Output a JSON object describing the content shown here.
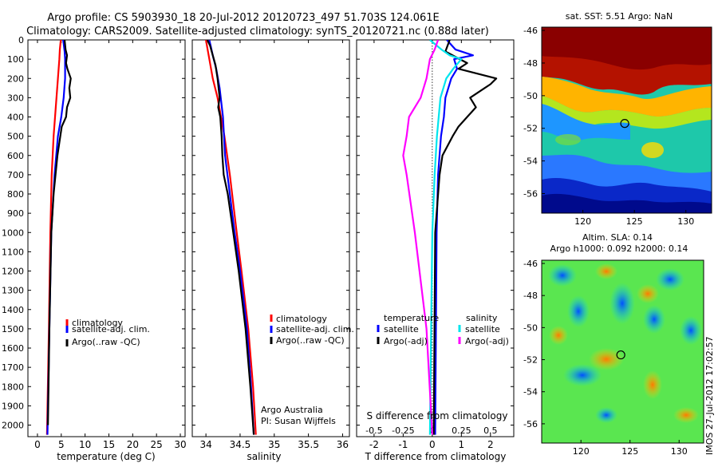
{
  "header": {
    "line1": "Argo profile: CS 5903930_18 20-Jul-2012 20120723_497 51.703S 124.061E",
    "line2": "Climatology: CARS2009. Satellite-adjusted climatology: synTS_20120721.nc (0.88d later)"
  },
  "colors": {
    "climatology": "#ff0000",
    "satellite": "#0000ff",
    "argo": "#000000",
    "sal_sat": "#00e5ee",
    "sal_argo": "#ff00ff"
  },
  "chart_data": [
    {
      "type": "line",
      "xlabel": "temperature (deg C)",
      "xlim": [
        -2,
        31
      ],
      "ylim": [
        2060,
        0
      ],
      "y_reversed": true,
      "xticks": [
        0,
        5,
        10,
        15,
        20,
        25,
        30
      ],
      "yticks": [
        0,
        100,
        200,
        300,
        400,
        500,
        600,
        700,
        800,
        900,
        1000,
        1100,
        1200,
        1300,
        1400,
        1500,
        1600,
        1700,
        1800,
        1900,
        2000
      ],
      "legend": [
        "climatology",
        "satellite-adj. clim.",
        "Argo(..raw -QC)"
      ],
      "legend_position": "center",
      "series": [
        {
          "name": "climatology",
          "color": "#ff0000",
          "depth": [
            0,
            50,
            100,
            200,
            300,
            400,
            500,
            700,
            1000,
            1500,
            2050
          ],
          "values": [
            4.9,
            4.7,
            4.6,
            4.3,
            4.0,
            3.7,
            3.4,
            3.0,
            2.7,
            2.4,
            2.0
          ]
        },
        {
          "name": "satellite-adj. clim.",
          "color": "#0000ff",
          "depth": [
            0,
            60,
            100,
            200,
            300,
            400,
            500,
            700,
            1000,
            1500,
            2050
          ],
          "values": [
            5.4,
            5.7,
            5.8,
            5.8,
            5.5,
            5.0,
            4.3,
            3.6,
            2.9,
            2.5,
            2.1
          ]
        },
        {
          "name": "Argo(..raw -QC)",
          "color": "#000000",
          "depth": [
            0,
            50,
            80,
            120,
            150,
            200,
            250,
            300,
            350,
            400,
            450,
            500,
            600,
            700,
            800,
            1000,
            1500,
            2000
          ],
          "values": [
            5.7,
            5.9,
            6.2,
            6.0,
            6.3,
            7.0,
            6.7,
            6.9,
            6.2,
            6.0,
            5.1,
            4.8,
            4.2,
            3.8,
            3.4,
            2.9,
            2.5,
            2.2
          ]
        }
      ]
    },
    {
      "type": "line",
      "xlabel": "salinity",
      "xlim": [
        33.8,
        36.1
      ],
      "ylim": [
        2060,
        0
      ],
      "y_reversed": true,
      "xticks": [
        34,
        34.5,
        35,
        35.5,
        36
      ],
      "legend": [
        "climatology",
        "satellite-adj. clim.",
        "Argo(..raw -QC)"
      ],
      "legend_position": "lower-right",
      "annotation": [
        "Argo Australia",
        "PI: Susan Wijffels"
      ],
      "series": [
        {
          "name": "climatology",
          "color": "#ff0000",
          "depth": [
            0,
            100,
            200,
            300,
            500,
            700,
            1000,
            1200,
            1500,
            1800,
            2050
          ],
          "values": [
            34.0,
            34.05,
            34.1,
            34.17,
            34.27,
            34.35,
            34.45,
            34.52,
            34.62,
            34.69,
            34.73
          ]
        },
        {
          "name": "satellite-adj. clim.",
          "color": "#0000ff",
          "depth": [
            0,
            80,
            150,
            250,
            400,
            600,
            800,
            1000,
            1200,
            1500,
            1800,
            2050
          ],
          "values": [
            34.05,
            34.1,
            34.15,
            34.2,
            34.25,
            34.28,
            34.35,
            34.42,
            34.5,
            34.6,
            34.66,
            34.7
          ]
        },
        {
          "name": "Argo(..raw -QC)",
          "color": "#000000",
          "depth": [
            0,
            30,
            80,
            130,
            200,
            300,
            350,
            400,
            500,
            600,
            700,
            800,
            1000,
            1200,
            1500,
            1800,
            2050
          ],
          "values": [
            34.02,
            34.06,
            34.1,
            34.14,
            34.17,
            34.2,
            34.18,
            34.21,
            34.23,
            34.24,
            34.26,
            34.32,
            34.4,
            34.48,
            34.58,
            34.65,
            34.7
          ]
        }
      ]
    },
    {
      "type": "line",
      "xlabel": "T difference from climatology",
      "xlabel_top": "S difference from climatology",
      "xlim": [
        -2.6,
        2.8
      ],
      "ylim": [
        2060,
        0
      ],
      "y_reversed": true,
      "xticks": [
        -2,
        -1,
        0,
        1,
        2
      ],
      "xticks_top": [
        "-0.5",
        "-0.25",
        "0",
        "0.25",
        "0.5"
      ],
      "zero_line": "dotted",
      "legend_groups": [
        "temperature",
        "salinity"
      ],
      "legend": [
        "satellite",
        "Argo(-adj)",
        "satellite",
        "Argo(-adj)"
      ],
      "series": [
        {
          "name": "satellite",
          "color": "#0000ff",
          "depth": [
            0,
            50,
            80,
            100,
            150,
            200,
            300,
            400,
            500,
            700,
            1000,
            2050
          ],
          "values": [
            0.5,
            0.8,
            1.4,
            0.75,
            0.85,
            0.65,
            0.45,
            0.4,
            0.3,
            0.2,
            0.15,
            0.1
          ]
        },
        {
          "name": "Argo(-adj)",
          "color": "#000000",
          "depth": [
            0,
            60,
            120,
            150,
            200,
            230,
            250,
            300,
            350,
            400,
            450,
            500,
            600,
            700,
            1000,
            2050
          ],
          "values": [
            0.6,
            0.45,
            1.2,
            0.9,
            2.2,
            2.0,
            1.8,
            1.3,
            1.5,
            1.2,
            0.9,
            0.7,
            0.35,
            0.25,
            0.1,
            0.05
          ]
        },
        {
          "name": "satellite",
          "color": "#00e5ee",
          "depth": [
            0,
            50,
            80,
            100,
            150,
            200,
            300,
            500,
            700,
            1000,
            1500,
            2050
          ],
          "values": [
            -0.02,
            0.08,
            0.15,
            0.25,
            0.18,
            0.12,
            0.07,
            0.04,
            0.02,
            0.0,
            -0.01,
            -0.02
          ]
        },
        {
          "name": "Argo(-adj)",
          "color": "#ff00ff",
          "depth": [
            0,
            50,
            100,
            200,
            300,
            400,
            500,
            600,
            700,
            1000,
            1500,
            2050
          ],
          "values": [
            0.05,
            0.02,
            -0.02,
            -0.05,
            -0.1,
            -0.2,
            -0.22,
            -0.25,
            -0.22,
            -0.15,
            -0.05,
            0.0
          ]
        }
      ]
    },
    {
      "type": "heatmap",
      "title": "sat. SST: 5.51 Argo: NaN",
      "xlim": [
        116,
        132.5
      ],
      "ylim": [
        -57.2,
        -45.8
      ],
      "xticks": [
        120,
        125,
        130
      ],
      "yticks": [
        -46,
        -48,
        -50,
        -52,
        -54,
        -56
      ],
      "colormap": "jet",
      "marker": {
        "lon": 124.061,
        "lat": -51.703
      }
    },
    {
      "type": "heatmap",
      "title": "Altim. SLA: 0.14",
      "subtitle": "Argo h1000: 0.092 h2000: 0.14",
      "xlim": [
        116,
        132.5
      ],
      "ylim": [
        -57.2,
        -45.8
      ],
      "xticks": [
        120,
        125,
        130
      ],
      "yticks": [
        -46,
        -48,
        -50,
        -52,
        -54,
        -56
      ],
      "colormap": "jet",
      "marker": {
        "lon": 124.061,
        "lat": -51.703
      }
    }
  ],
  "footer": {
    "stamp": "IMOS 27-Jul-2012 17:02:57"
  }
}
